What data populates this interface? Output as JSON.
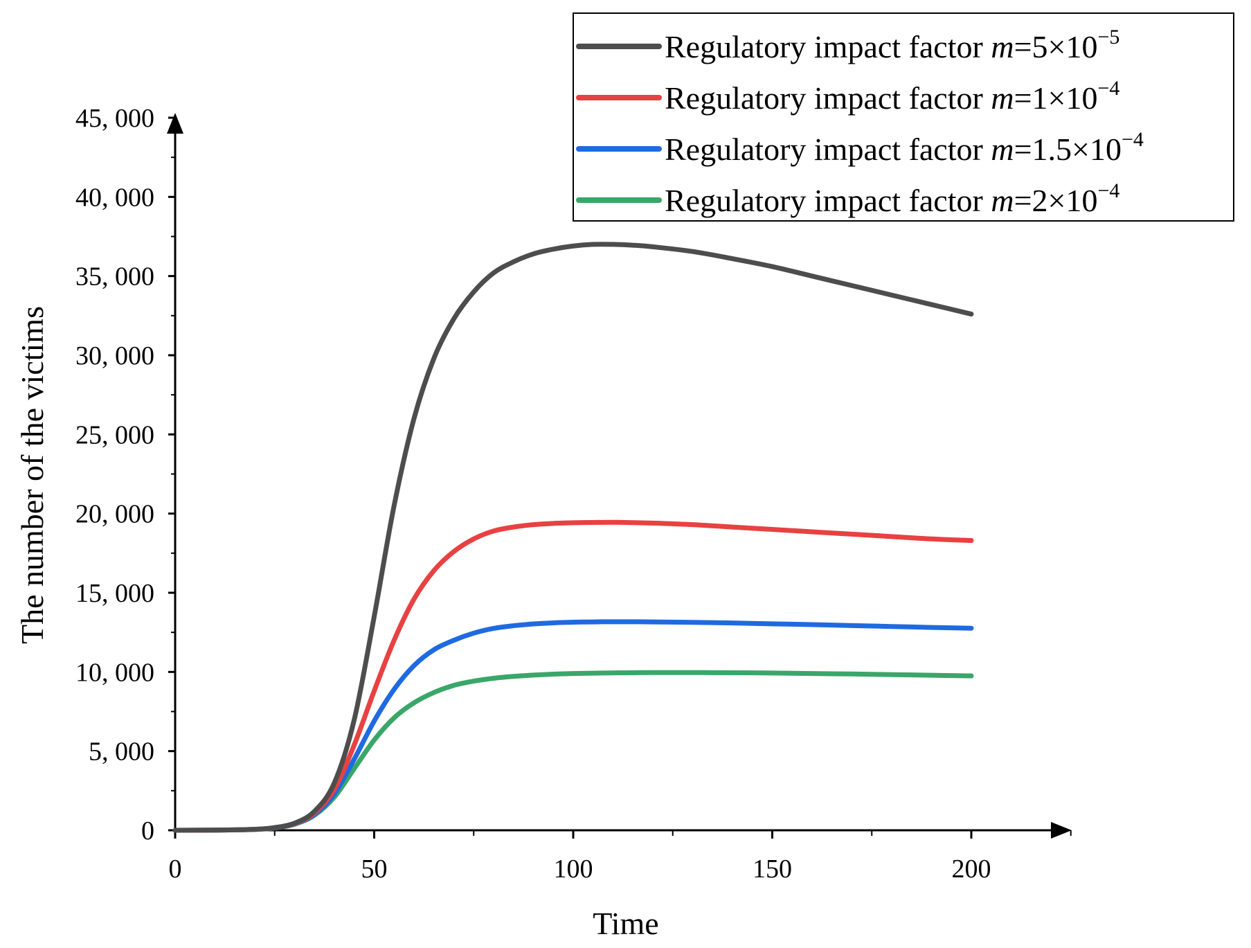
{
  "chart_data": {
    "type": "line",
    "title": "",
    "xlabel": "Time",
    "ylabel": "The number of the victims",
    "xlim": [
      0,
      225
    ],
    "ylim": [
      0,
      45000
    ],
    "x_ticks": [
      0,
      50,
      100,
      150,
      200
    ],
    "y_ticks": [
      0,
      5000,
      10000,
      15000,
      20000,
      25000,
      30000,
      35000,
      40000,
      45000
    ],
    "x_tick_labels": [
      "0",
      "50",
      "100",
      "150",
      "200"
    ],
    "y_tick_labels": [
      "0",
      "5, 000",
      "10, 000",
      "15, 000",
      "20, 000",
      "25, 000",
      "30, 000",
      "35, 000",
      "40, 000",
      "45, 000"
    ],
    "legend_position": "top-right",
    "x": [
      0,
      10,
      20,
      25,
      30,
      35,
      40,
      45,
      50,
      55,
      60,
      65,
      70,
      75,
      80,
      85,
      90,
      95,
      100,
      105,
      110,
      115,
      120,
      130,
      140,
      150,
      160,
      170,
      180,
      190,
      200
    ],
    "series": [
      {
        "name": "m=5×10^-5",
        "label_text": "Regulatory impact factor ",
        "label_var": "m",
        "label_eq": "=5×10",
        "label_sup": "−5",
        "color": "#4d4d4d",
        "values": [
          0,
          10,
          60,
          170,
          450,
          1200,
          3000,
          7000,
          13500,
          20500,
          26000,
          29800,
          32300,
          34000,
          35200,
          35900,
          36400,
          36700,
          36900,
          37000,
          37000,
          36950,
          36850,
          36550,
          36100,
          35600,
          35000,
          34400,
          33800,
          33200,
          32600
        ]
      },
      {
        "name": "m=1×10^-4",
        "label_text": "Regulatory impact factor ",
        "label_var": "m",
        "label_eq": "=1×10",
        "label_sup": "−4",
        "color": "#e84142",
        "values": [
          0,
          10,
          60,
          160,
          420,
          1100,
          2600,
          5400,
          8800,
          12000,
          14600,
          16400,
          17600,
          18400,
          18900,
          19150,
          19300,
          19380,
          19420,
          19440,
          19450,
          19430,
          19400,
          19300,
          19150,
          19000,
          18850,
          18700,
          18550,
          18400,
          18300
        ]
      },
      {
        "name": "m=1.5×10^-4",
        "label_text": "Regulatory impact factor ",
        "label_var": "m",
        "label_eq": "=1.5×10",
        "label_sup": "−4",
        "color": "#1f6ae0",
        "values": [
          0,
          10,
          55,
          150,
          400,
          1000,
          2300,
          4500,
          6900,
          8900,
          10400,
          11400,
          12000,
          12450,
          12750,
          12920,
          13030,
          13100,
          13140,
          13160,
          13170,
          13170,
          13160,
          13130,
          13090,
          13040,
          12990,
          12930,
          12870,
          12810,
          12760
        ]
      },
      {
        "name": "m=2×10^-4",
        "label_text": "Regulatory impact factor ",
        "label_var": "m",
        "label_eq": "=2×10",
        "label_sup": "−4",
        "color": "#3aa669",
        "values": [
          0,
          10,
          50,
          140,
          380,
          950,
          2100,
          3900,
          5700,
          7100,
          8050,
          8700,
          9150,
          9420,
          9600,
          9720,
          9800,
          9860,
          9900,
          9920,
          9940,
          9950,
          9960,
          9960,
          9950,
          9930,
          9900,
          9870,
          9830,
          9790,
          9750
        ]
      }
    ]
  }
}
